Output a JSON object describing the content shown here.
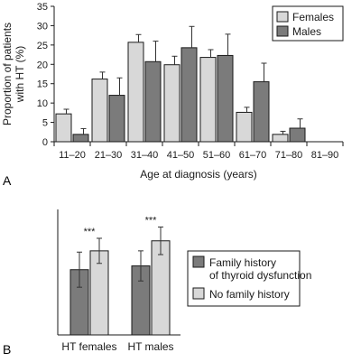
{
  "colors": {
    "light": "#d8d8d8",
    "dark": "#7b7b7b",
    "outline": "#1a1a1a",
    "error": "#333333"
  },
  "chart_data": [
    {
      "panel_label": "A",
      "type": "bar",
      "categories": [
        "11–20",
        "21–30",
        "31–40",
        "41–50",
        "51–60",
        "61–70",
        "71–80",
        "81–90"
      ],
      "series": [
        {
          "name": "Females",
          "color_key": "light",
          "values": [
            7.2,
            16.2,
            25.7,
            19.9,
            21.8,
            7.6,
            1.9,
            0
          ],
          "errors": [
            1.2,
            1.8,
            2.0,
            2.2,
            2.0,
            1.3,
            0.8,
            0
          ]
        },
        {
          "name": "Males",
          "color_key": "dark",
          "values": [
            1.9,
            12.0,
            20.7,
            24.3,
            22.3,
            15.5,
            3.5,
            0
          ],
          "errors": [
            1.5,
            4.5,
            5.3,
            5.5,
            5.5,
            4.8,
            2.4,
            0
          ]
        }
      ],
      "xlabel": "Age at diagnosis (years)",
      "ylabel_lines": [
        "Proportion of patients",
        "with HT (%)"
      ],
      "ylim": [
        0,
        35
      ],
      "yticks": [
        0,
        5,
        10,
        15,
        20,
        25,
        30,
        35
      ],
      "legend": "top-right",
      "grid": false
    },
    {
      "panel_label": "B",
      "type": "bar",
      "categories": [
        "HT females",
        "HT males"
      ],
      "series": [
        {
          "name": "Family history of thyroid dysfunction",
          "color_key": "dark",
          "values": [
            0.52,
            0.55
          ],
          "errors": [
            0.14,
            0.12
          ]
        },
        {
          "name": "No family history",
          "color_key": "light",
          "values": [
            0.67,
            0.75
          ],
          "errors": [
            0.1,
            0.11
          ]
        }
      ],
      "annotations": [
        "***",
        "***"
      ],
      "ylim": [
        0,
        1
      ],
      "yticks_shown": false,
      "legend": "right",
      "grid": false
    }
  ]
}
